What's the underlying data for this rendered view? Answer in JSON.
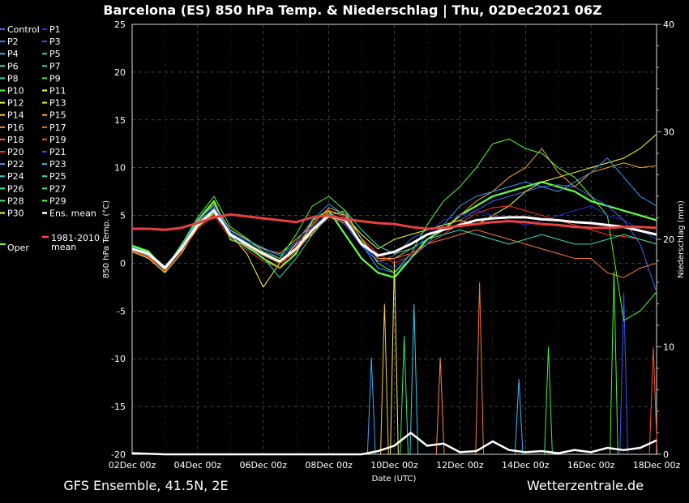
{
  "chart_data": {
    "type": "line",
    "title": "Barcelona  (ES)  850 hPa Temp. & Niederschlag | Thu, 02Dec2021 06Z",
    "xlabel": "Date (UTC)",
    "ylabel": "850 hPa Temp. (°C)",
    "ylabel_right": "Niederschlag (mm)",
    "x_ticks": [
      "02Dec 00z",
      "04Dec 00z",
      "06Dec 00z",
      "08Dec 00z",
      "10Dec 00z",
      "12Dec 00z",
      "14Dec 00z",
      "16Dec 00z",
      "18Dec 00z"
    ],
    "y_ticks": [
      "25",
      "20",
      "15",
      "10",
      "5",
      "0",
      "-5",
      "-10",
      "-15",
      "-20"
    ],
    "y_ticks_right": [
      "40",
      "30",
      "20",
      "10",
      "0"
    ],
    "ylim": [
      -20,
      25
    ],
    "ylim_right": [
      0,
      40
    ],
    "xlim_days": [
      0,
      16
    ],
    "grid": true,
    "footer_left": "GFS Ensemble, 41.5N, 2E",
    "footer_right": "Wetterzentrale.de",
    "legend": [
      {
        "name": "Control",
        "color": "#4466ff"
      },
      {
        "name": "P1",
        "color": "#2233dd"
      },
      {
        "name": "P2",
        "color": "#3388ff"
      },
      {
        "name": "P3",
        "color": "#3355ee"
      },
      {
        "name": "P4",
        "color": "#33aaff"
      },
      {
        "name": "P5",
        "color": "#33ccee"
      },
      {
        "name": "P6",
        "color": "#33ddcc"
      },
      {
        "name": "P7",
        "color": "#33ddaa"
      },
      {
        "name": "P8",
        "color": "#33dd88"
      },
      {
        "name": "P9",
        "color": "#33ee66"
      },
      {
        "name": "P10",
        "color": "#44ff22"
      },
      {
        "name": "P11",
        "color": "#ffff33"
      },
      {
        "name": "P12",
        "color": "#ffee55"
      },
      {
        "name": "P13",
        "color": "#ffdd44"
      },
      {
        "name": "P14",
        "color": "#ffcc33"
      },
      {
        "name": "P15",
        "color": "#ffaa22"
      },
      {
        "name": "P16",
        "color": "#ff8844"
      },
      {
        "name": "P17",
        "color": "#ff7733"
      },
      {
        "name": "P18",
        "color": "#ff6622"
      },
      {
        "name": "P19",
        "color": "#ff5522"
      },
      {
        "name": "P20",
        "color": "#ff3322"
      },
      {
        "name": "P21",
        "color": "#3355ff"
      },
      {
        "name": "P22",
        "color": "#3399ff"
      },
      {
        "name": "P23",
        "color": "#33bbff"
      },
      {
        "name": "P24",
        "color": "#33ccdd"
      },
      {
        "name": "P25",
        "color": "#33ddbb"
      },
      {
        "name": "P26",
        "color": "#33ee99"
      },
      {
        "name": "P27",
        "color": "#33ee77"
      },
      {
        "name": "P28",
        "color": "#44ee55"
      },
      {
        "name": "P29",
        "color": "#55ff33"
      },
      {
        "name": "P30",
        "color": "#ffff44"
      },
      {
        "name": "Ens. mean",
        "color": "#ffffff"
      },
      {
        "name": "1981-2010 mean",
        "color": "#ff4444"
      },
      {
        "name": "Oper",
        "color": "#66ff44"
      }
    ],
    "series": [
      {
        "name": "Ens. mean",
        "color": "#ffffff",
        "x": [
          0,
          0.5,
          1,
          1.5,
          2,
          2.5,
          3,
          3.5,
          4,
          4.5,
          5,
          5.5,
          6,
          6.5,
          7,
          7.5,
          8,
          8.5,
          9,
          9.5,
          10,
          10.5,
          11,
          11.5,
          12,
          12.5,
          13,
          13.5,
          14,
          14.5,
          15,
          15.5,
          16
        ],
        "values": [
          1.5,
          1.0,
          -0.5,
          1.5,
          4.0,
          5.5,
          3.0,
          2.0,
          1.0,
          0.2,
          1.5,
          3.5,
          5.0,
          4.5,
          2.0,
          0.8,
          1.2,
          2.0,
          3.0,
          3.5,
          4.0,
          4.5,
          4.7,
          4.8,
          4.8,
          4.6,
          4.5,
          4.3,
          4.2,
          4.0,
          3.8,
          3.4,
          3.0
        ]
      },
      {
        "name": "1981-2010 mean",
        "color": "#e84040",
        "x": [
          0,
          0.5,
          1,
          1.5,
          2,
          2.5,
          3,
          3.5,
          4,
          4.5,
          5,
          5.5,
          6,
          6.5,
          7,
          7.5,
          8,
          8.5,
          9,
          9.5,
          10,
          10.5,
          11,
          11.5,
          12,
          12.5,
          13,
          13.5,
          14,
          14.5,
          15,
          15.5,
          16
        ],
        "values": [
          3.6,
          3.6,
          3.5,
          3.7,
          4.2,
          4.8,
          5.1,
          4.9,
          4.7,
          4.5,
          4.3,
          4.8,
          5.0,
          4.6,
          4.4,
          4.2,
          4.1,
          3.8,
          3.6,
          3.7,
          3.9,
          4.1,
          4.3,
          4.4,
          4.3,
          4.1,
          4.0,
          3.8,
          3.7,
          3.7,
          3.8,
          3.8,
          3.7
        ]
      },
      {
        "name": "Oper",
        "color": "#66ff44",
        "x": [
          0,
          0.5,
          1,
          1.5,
          2,
          2.5,
          3,
          3.5,
          4,
          4.5,
          5,
          5.5,
          6,
          6.5,
          7,
          7.5,
          8,
          8.5,
          9,
          9.5,
          10,
          10.5,
          11,
          11.5,
          12,
          12.5,
          13,
          13.5,
          14,
          14.5,
          15,
          15.5,
          16
        ],
        "values": [
          1.8,
          1.2,
          -0.8,
          1.8,
          4.5,
          6.5,
          2.5,
          1.8,
          0.5,
          -0.5,
          1.0,
          4.5,
          5.5,
          3.0,
          0.5,
          -1.0,
          -1.5,
          0.5,
          2.5,
          3.5,
          5.0,
          6.0,
          7.0,
          7.5,
          8.0,
          8.5,
          8.0,
          7.5,
          6.5,
          6.0,
          5.5,
          5.0,
          4.5
        ]
      },
      {
        "name": "Control",
        "color": "#4466ff",
        "x": [
          0,
          0.5,
          1,
          1.5,
          2,
          2.5,
          3,
          3.5,
          4,
          4.5,
          5,
          5.5,
          6,
          6.5,
          7,
          7.5,
          8,
          8.5,
          9,
          9.5,
          10,
          10.5,
          11,
          11.5,
          12,
          12.5,
          13,
          13.5,
          14,
          14.5,
          15,
          15.5,
          16
        ],
        "values": [
          1.5,
          0.8,
          -0.7,
          2.0,
          4.2,
          5.8,
          3.2,
          2.2,
          1.5,
          0.5,
          2.0,
          3.8,
          5.2,
          4.0,
          1.8,
          0.2,
          0.8,
          2.5,
          3.5,
          4.0,
          4.5,
          5.5,
          6.5,
          7.0,
          7.5,
          8.0,
          8.2,
          8.0,
          7.0,
          6.0,
          4.5,
          2.0,
          -3.0
        ]
      },
      {
        "name": "P11",
        "color": "#ffff33",
        "x": [
          0,
          0.5,
          1,
          1.5,
          2,
          2.5,
          3,
          3.5,
          4,
          4.5,
          5,
          5.5,
          6,
          6.5,
          7,
          7.5,
          8,
          8.5,
          9,
          9.5,
          10,
          10.5,
          11,
          11.5,
          12,
          12.5,
          13,
          13.5,
          14,
          14.5,
          15,
          15.5,
          16
        ],
        "values": [
          1.2,
          0.5,
          -1.0,
          1.0,
          3.8,
          5.2,
          3.0,
          1.0,
          -2.5,
          0.0,
          2.0,
          3.0,
          5.5,
          5.0,
          3.0,
          1.5,
          2.5,
          3.0,
          3.5,
          4.0,
          4.5,
          4.0,
          5.0,
          6.0,
          7.5,
          8.5,
          9.0,
          9.5,
          10.0,
          10.5,
          11.0,
          12.0,
          13.5
        ]
      },
      {
        "name": "P15",
        "color": "#ffaa22",
        "x": [
          0,
          0.5,
          1,
          1.5,
          2,
          2.5,
          3,
          3.5,
          4,
          4.5,
          5,
          5.5,
          6,
          6.5,
          7,
          7.5,
          8,
          8.5,
          9,
          9.5,
          10,
          10.5,
          11,
          11.5,
          12,
          12.5,
          13,
          13.5,
          14,
          14.5,
          15,
          15.5,
          16
        ],
        "values": [
          1.6,
          0.9,
          -0.4,
          1.4,
          4.4,
          6.2,
          3.5,
          2.5,
          1.5,
          1.0,
          2.5,
          4.0,
          5.8,
          5.2,
          2.5,
          0.5,
          0.5,
          1.5,
          2.5,
          3.5,
          5.0,
          6.5,
          7.5,
          9.0,
          10.0,
          12.0,
          9.5,
          8.0,
          9.5,
          10.0,
          10.5,
          10.0,
          10.2
        ]
      },
      {
        "name": "P17",
        "color": "#ff7733",
        "x": [
          0,
          0.5,
          1,
          1.5,
          2,
          2.5,
          3,
          3.5,
          4,
          4.5,
          5,
          5.5,
          6,
          6.5,
          7,
          7.5,
          8,
          8.5,
          9,
          9.5,
          10,
          10.5,
          11,
          11.5,
          12,
          12.5,
          13,
          13.5,
          14,
          14.5,
          15,
          15.5,
          16
        ],
        "values": [
          1.4,
          0.7,
          -0.6,
          1.6,
          4.0,
          5.5,
          3.0,
          1.8,
          0.8,
          0.0,
          1.2,
          3.2,
          4.8,
          4.2,
          2.2,
          0.2,
          0.5,
          1.0,
          2.0,
          2.5,
          3.0,
          3.5,
          3.0,
          2.5,
          2.0,
          1.5,
          1.0,
          0.5,
          0.5,
          -1.0,
          -1.5,
          -0.5,
          0.0
        ]
      },
      {
        "name": "P20",
        "color": "#ff3322",
        "x": [
          0,
          0.5,
          1,
          1.5,
          2,
          2.5,
          3,
          3.5,
          4,
          4.5,
          5,
          5.5,
          6,
          6.5,
          7,
          7.5,
          8,
          8.5,
          9,
          9.5,
          10,
          10.5,
          11,
          11.5,
          12,
          12.5,
          13,
          13.5,
          14,
          14.5,
          15,
          15.5,
          16
        ],
        "values": [
          1.3,
          0.6,
          -0.8,
          1.2,
          3.6,
          5.0,
          2.6,
          1.4,
          0.2,
          -0.5,
          1.8,
          4.2,
          5.5,
          4.8,
          2.6,
          1.0,
          0.0,
          0.8,
          2.0,
          3.0,
          4.2,
          5.2,
          5.8,
          6.0,
          5.5,
          5.0,
          4.5,
          4.0,
          3.5,
          3.0,
          2.8,
          2.5,
          2.0
        ]
      },
      {
        "name": "P22",
        "color": "#3399ff",
        "x": [
          0,
          0.5,
          1,
          1.5,
          2,
          2.5,
          3,
          3.5,
          4,
          4.5,
          5,
          5.5,
          6,
          6.5,
          7,
          7.5,
          8,
          8.5,
          9,
          9.5,
          10,
          10.5,
          11,
          11.5,
          12,
          12.5,
          13,
          13.5,
          14,
          14.5,
          15,
          15.5,
          16
        ],
        "values": [
          1.7,
          1.1,
          -0.3,
          1.7,
          4.6,
          6.0,
          3.4,
          2.4,
          1.6,
          0.8,
          2.2,
          4.5,
          6.2,
          5.0,
          2.0,
          -0.5,
          -1.0,
          0.5,
          2.0,
          4.0,
          6.0,
          7.0,
          7.5,
          8.0,
          8.5,
          8.0,
          7.5,
          8.5,
          9.5,
          11.0,
          9.0,
          7.0,
          6.0
        ]
      },
      {
        "name": "P25",
        "color": "#33ddbb",
        "x": [
          0,
          0.5,
          1,
          1.5,
          2,
          2.5,
          3,
          3.5,
          4,
          4.5,
          5,
          5.5,
          6,
          6.5,
          7,
          7.5,
          8,
          8.5,
          9,
          9.5,
          10,
          10.5,
          11,
          11.5,
          12,
          12.5,
          13,
          13.5,
          14,
          14.5,
          15,
          15.5,
          16
        ],
        "values": [
          1.5,
          0.8,
          -0.5,
          1.5,
          4.3,
          5.7,
          2.8,
          1.6,
          0.6,
          -1.5,
          0.5,
          3.0,
          5.0,
          5.5,
          3.5,
          1.8,
          1.0,
          1.5,
          2.5,
          3.0,
          3.5,
          3.0,
          2.5,
          2.0,
          2.5,
          3.0,
          2.5,
          2.0,
          2.0,
          2.5,
          3.0,
          2.5,
          2.0
        ]
      },
      {
        "name": "P29",
        "color": "#55ff33",
        "x": [
          0,
          0.5,
          1,
          1.5,
          2,
          2.5,
          3,
          3.5,
          4,
          4.5,
          5,
          5.5,
          6,
          6.5,
          7,
          7.5,
          8,
          8.5,
          9,
          9.5,
          10,
          10.5,
          11,
          11.5,
          12,
          12.5,
          13,
          13.5,
          14,
          14.5,
          15,
          15.5,
          16
        ],
        "values": [
          1.9,
          1.3,
          -0.6,
          1.9,
          4.8,
          7.0,
          3.8,
          2.6,
          1.2,
          0.5,
          3.0,
          6.0,
          7.0,
          5.5,
          2.5,
          0.0,
          -1.0,
          1.0,
          4.0,
          6.5,
          8.0,
          10.0,
          12.5,
          13.0,
          12.0,
          11.5,
          10.0,
          9.0,
          7.0,
          5.0,
          -6.0,
          -5.0,
          -3.0
        ]
      },
      {
        "name": "P1",
        "color": "#2233dd",
        "x": [
          0,
          0.5,
          1,
          1.5,
          2,
          2.5,
          3,
          3.5,
          4,
          4.5,
          5,
          5.5,
          6,
          6.5,
          7,
          7.5,
          8,
          8.5,
          9,
          9.5,
          10,
          10.5,
          11,
          11.5,
          12,
          12.5,
          13,
          13.5,
          14,
          14.5,
          15,
          15.5,
          16
        ],
        "values": [
          1.4,
          0.9,
          -0.5,
          1.6,
          4.1,
          5.6,
          3.1,
          2.0,
          1.0,
          0.3,
          1.6,
          3.6,
          5.0,
          4.4,
          2.0,
          0.3,
          -0.5,
          1.0,
          3.0,
          4.5,
          5.0,
          5.5,
          5.0,
          4.5,
          4.0,
          4.5,
          5.0,
          5.5,
          6.0,
          5.0,
          4.5,
          3.5,
          2.5
        ]
      }
    ],
    "precip_ens_mean": {
      "x": [
        0,
        1,
        2,
        3,
        4,
        5,
        6,
        7,
        7.5,
        8,
        8.5,
        9,
        9.5,
        10,
        10.5,
        11,
        11.5,
        12,
        12.5,
        13,
        13.5,
        14,
        14.5,
        15,
        15.5,
        16
      ],
      "values": [
        0.1,
        0,
        0,
        0,
        0,
        0,
        0,
        0,
        0.3,
        0.8,
        2.0,
        0.8,
        1.0,
        0.2,
        0.3,
        1.2,
        0.4,
        0.2,
        0.3,
        0.1,
        0.4,
        0.2,
        0.6,
        0.4,
        0.6,
        1.3
      ]
    },
    "precip_spikes": [
      {
        "x": 7.3,
        "values": [
          0,
          9,
          0
        ],
        "color": "#33aaff"
      },
      {
        "x": 7.7,
        "values": [
          0,
          14,
          0
        ],
        "color": "#ffcc33"
      },
      {
        "x": 8.0,
        "values": [
          0,
          18,
          0
        ],
        "color": "#ffee55"
      },
      {
        "x": 8.3,
        "values": [
          0,
          11,
          0
        ],
        "color": "#33ee66"
      },
      {
        "x": 8.6,
        "values": [
          0,
          14,
          0
        ],
        "color": "#33ccee"
      },
      {
        "x": 9.4,
        "values": [
          0,
          9,
          0
        ],
        "color": "#ff8844"
      },
      {
        "x": 10.6,
        "values": [
          0,
          16,
          0
        ],
        "color": "#ff7733"
      },
      {
        "x": 11.8,
        "values": [
          0,
          7,
          0
        ],
        "color": "#33bbff"
      },
      {
        "x": 12.7,
        "values": [
          0,
          10,
          0
        ],
        "color": "#33ee66"
      },
      {
        "x": 14.7,
        "values": [
          0,
          17,
          0
        ],
        "color": "#44ff22"
      },
      {
        "x": 15.0,
        "values": [
          0,
          15,
          0
        ],
        "color": "#3355ff"
      },
      {
        "x": 15.9,
        "values": [
          0,
          10,
          0
        ],
        "color": "#ff5522"
      }
    ]
  }
}
